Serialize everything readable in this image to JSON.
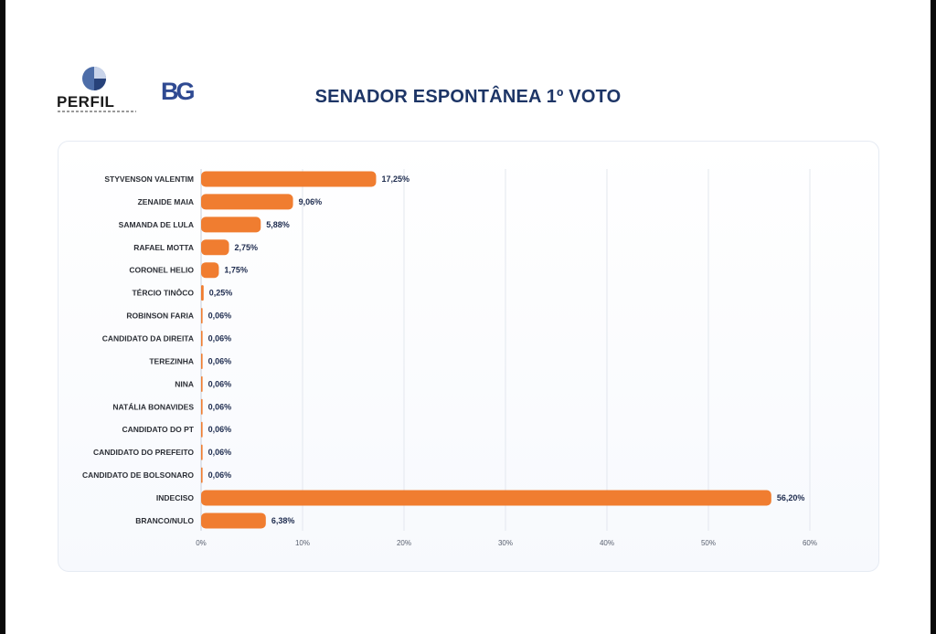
{
  "logos": {
    "perfil_text": "PERFIL",
    "bg_text": "BG"
  },
  "colors": {
    "bar": "#f07d30",
    "title": "#1d3566",
    "grid": "#e3e7ee"
  },
  "chart_data": {
    "type": "bar",
    "orientation": "horizontal",
    "title": "SENADOR ESPONTÂNEA 1º VOTO",
    "xlabel": "",
    "ylabel": "",
    "xlim": [
      0,
      60
    ],
    "x_ticks": [
      "0%",
      "10%",
      "20%",
      "30%",
      "40%",
      "50%",
      "60%"
    ],
    "grid": "vertical",
    "legend": "none",
    "categories": [
      "STYVENSON VALENTIM",
      "ZENAIDE MAIA",
      "SAMANDA DE LULA",
      "RAFAEL MOTTA",
      "CORONEL HELIO",
      "TÉRCIO TINÔCO",
      "ROBINSON FARIA",
      "CANDIDATO DA DIREITA",
      "TEREZINHA",
      "NINA",
      "NATÁLIA BONAVIDES",
      "CANDIDATO DO PT",
      "CANDIDATO DO PREFEITO",
      "CANDIDATO DE BOLSONARO",
      "INDECISO",
      "BRANCO/NULO"
    ],
    "values": [
      17.25,
      9.06,
      5.88,
      2.75,
      1.75,
      0.25,
      0.06,
      0.06,
      0.06,
      0.06,
      0.06,
      0.06,
      0.06,
      0.06,
      56.2,
      6.38
    ],
    "value_labels": [
      "17,25%",
      "9,06%",
      "5,88%",
      "2,75%",
      "1,75%",
      "0,25%",
      "0,06%",
      "0,06%",
      "0,06%",
      "0,06%",
      "0,06%",
      "0,06%",
      "0,06%",
      "0,06%",
      "56,20%",
      "6,38%"
    ]
  }
}
